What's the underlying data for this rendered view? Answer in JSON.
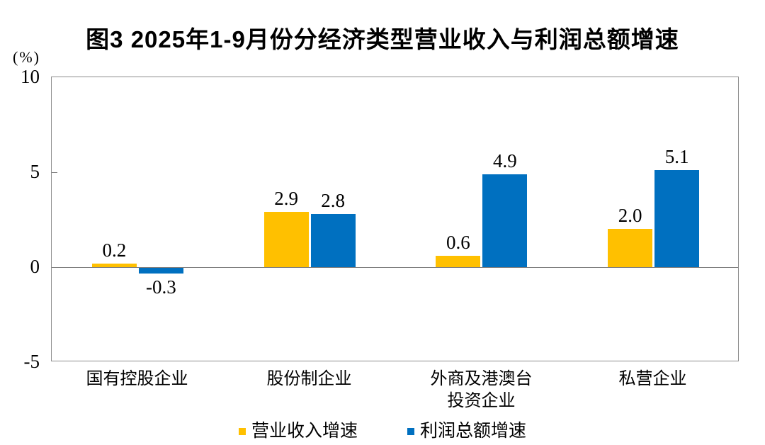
{
  "title": "图3 2025年1-9月份分经济类型营业收入与利润总额增速",
  "unit_label": "(%)",
  "chart_data": {
    "type": "bar",
    "title": "图3 2025年1-9月份分经济类型营业收入与利润总额增速",
    "unit": "(%)",
    "categories": [
      "国有控股企业",
      "股份制企业",
      "外商及港澳台\n投资企业",
      "私营企业"
    ],
    "series": [
      {
        "key": "operating-revenue-growth",
        "name": "营业收入增速",
        "color": "#FFC000",
        "values": [
          0.2,
          2.9,
          0.6,
          2.0
        ]
      },
      {
        "key": "total-profit-growth",
        "name": "利润总额增速",
        "color": "#0070C0",
        "values": [
          -0.3,
          2.8,
          4.9,
          5.1
        ]
      }
    ],
    "data_labels": [
      [
        "0.2",
        "2.9",
        "0.6",
        "2.0"
      ],
      [
        "-0.3",
        "2.8",
        "4.9",
        "5.1"
      ]
    ],
    "ylim": [
      -5,
      10
    ],
    "yticks": [
      10,
      5,
      0,
      -5
    ],
    "ytick_labels": [
      "10",
      "5",
      "0",
      "-5"
    ],
    "axis_color": "#8C8C8C",
    "zero_line_color": "#7F7F7F",
    "grid": false,
    "legend_position": "bottom"
  }
}
